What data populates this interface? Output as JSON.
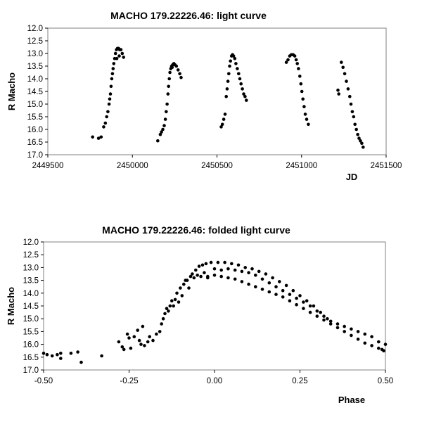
{
  "chart_data": [
    {
      "type": "scatter",
      "title": "MACHO 179.22226.46: light curve",
      "xlabel": "JD",
      "ylabel": "R Macho",
      "xlim": [
        2449500,
        2451500
      ],
      "ylim": [
        12.0,
        17.0
      ],
      "y_inverted": true,
      "grid": false,
      "x_ticks": [
        "2449500",
        "2450000",
        "2450500",
        "2451000",
        "2451500"
      ],
      "y_ticks": [
        "12.0",
        "12.5",
        "13.0",
        "13.5",
        "14.0",
        "14.5",
        "15.0",
        "15.5",
        "16.0",
        "16.5",
        "17.0"
      ],
      "marker_color": "#000000",
      "series": [
        {
          "points": [
            [
              2449765,
              16.3
            ],
            [
              2449800,
              16.35
            ],
            [
              2449815,
              16.3
            ],
            [
              2449830,
              15.9
            ],
            [
              2449840,
              15.75
            ],
            [
              2449848,
              15.5
            ],
            [
              2449855,
              15.3
            ],
            [
              2449862,
              15.0
            ],
            [
              2449866,
              14.8
            ],
            [
              2449870,
              14.6
            ],
            [
              2449874,
              14.3
            ],
            [
              2449878,
              14.0
            ],
            [
              2449882,
              13.8
            ],
            [
              2449886,
              13.6
            ],
            [
              2449890,
              13.4
            ],
            [
              2449895,
              13.2
            ],
            [
              2449900,
              13.0
            ],
            [
              2449906,
              12.85
            ],
            [
              2449912,
              12.8
            ],
            [
              2449918,
              12.8
            ],
            [
              2449925,
              12.85
            ],
            [
              2449932,
              12.85
            ],
            [
              2449940,
              13.0
            ],
            [
              2449948,
              13.15
            ],
            [
              2449922,
              13.1
            ],
            [
              2449908,
              13.2
            ],
            [
              2450150,
              16.45
            ],
            [
              2450165,
              16.2
            ],
            [
              2450172,
              16.1
            ],
            [
              2450180,
              16.0
            ],
            [
              2450188,
              15.85
            ],
            [
              2450195,
              15.6
            ],
            [
              2450200,
              15.3
            ],
            [
              2450205,
              15.0
            ],
            [
              2450210,
              14.6
            ],
            [
              2450214,
              14.3
            ],
            [
              2450218,
              14.0
            ],
            [
              2450222,
              13.75
            ],
            [
              2450227,
              13.6
            ],
            [
              2450232,
              13.5
            ],
            [
              2450238,
              13.45
            ],
            [
              2450245,
              13.4
            ],
            [
              2450252,
              13.45
            ],
            [
              2450260,
              13.5
            ],
            [
              2450270,
              13.65
            ],
            [
              2450280,
              13.8
            ],
            [
              2450288,
              13.95
            ],
            [
              2450235,
              13.55
            ],
            [
              2450525,
              15.9
            ],
            [
              2450532,
              15.8
            ],
            [
              2450540,
              15.6
            ],
            [
              2450548,
              15.4
            ],
            [
              2450555,
              14.7
            ],
            [
              2450560,
              14.4
            ],
            [
              2450565,
              14.1
            ],
            [
              2450570,
              13.8
            ],
            [
              2450575,
              13.5
            ],
            [
              2450580,
              13.3
            ],
            [
              2450586,
              13.1
            ],
            [
              2450592,
              13.05
            ],
            [
              2450598,
              13.1
            ],
            [
              2450605,
              13.2
            ],
            [
              2450612,
              13.4
            ],
            [
              2450620,
              13.6
            ],
            [
              2450628,
              13.8
            ],
            [
              2450635,
              14.0
            ],
            [
              2450642,
              14.2
            ],
            [
              2450650,
              14.4
            ],
            [
              2450658,
              14.6
            ],
            [
              2450666,
              14.7
            ],
            [
              2450674,
              14.85
            ],
            [
              2450910,
              13.35
            ],
            [
              2450920,
              13.25
            ],
            [
              2450930,
              13.1
            ],
            [
              2450940,
              13.05
            ],
            [
              2450950,
              13.05
            ],
            [
              2450960,
              13.1
            ],
            [
              2450968,
              13.25
            ],
            [
              2450975,
              13.4
            ],
            [
              2450982,
              13.6
            ],
            [
              2450990,
              13.9
            ],
            [
              2450996,
              14.2
            ],
            [
              2451002,
              14.5
            ],
            [
              2451008,
              14.8
            ],
            [
              2451015,
              15.1
            ],
            [
              2451022,
              15.4
            ],
            [
              2451030,
              15.6
            ],
            [
              2451040,
              15.8
            ],
            [
              2451215,
              14.45
            ],
            [
              2451220,
              14.6
            ],
            [
              2451235,
              13.35
            ],
            [
              2451245,
              13.55
            ],
            [
              2451255,
              13.8
            ],
            [
              2451265,
              14.1
            ],
            [
              2451275,
              14.4
            ],
            [
              2451285,
              14.7
            ],
            [
              2451292,
              15.0
            ],
            [
              2451300,
              15.3
            ],
            [
              2451308,
              15.5
            ],
            [
              2451316,
              15.8
            ],
            [
              2451324,
              16.0
            ],
            [
              2451332,
              16.2
            ],
            [
              2451340,
              16.35
            ],
            [
              2451348,
              16.45
            ],
            [
              2451356,
              16.55
            ],
            [
              2451364,
              16.7
            ]
          ]
        }
      ]
    },
    {
      "type": "scatter",
      "title": "MACHO 179.22226.46: folded light curve",
      "xlabel": "Phase",
      "ylabel": "R Macho",
      "xlim": [
        -0.5,
        0.5
      ],
      "ylim": [
        12.0,
        17.0
      ],
      "y_inverted": true,
      "grid": false,
      "x_ticks": [
        "-0.50",
        "-0.25",
        "0.00",
        "0.25",
        "0.50"
      ],
      "y_ticks": [
        "12.0",
        "12.5",
        "13.0",
        "13.5",
        "14.0",
        "14.5",
        "15.0",
        "15.5",
        "16.0",
        "16.5",
        "17.0"
      ],
      "marker_color": "#000000",
      "series": [
        {
          "points": [
            [
              -0.5,
              16.35
            ],
            [
              -0.49,
              16.4
            ],
            [
              -0.475,
              16.45
            ],
            [
              -0.46,
              16.4
            ],
            [
              -0.45,
              16.55
            ],
            [
              -0.45,
              16.35
            ],
            [
              -0.42,
              16.35
            ],
            [
              -0.4,
              16.3
            ],
            [
              -0.39,
              16.7
            ],
            [
              -0.33,
              16.45
            ],
            [
              -0.28,
              15.9
            ],
            [
              -0.27,
              16.1
            ],
            [
              -0.265,
              16.2
            ],
            [
              -0.255,
              15.6
            ],
            [
              -0.25,
              15.75
            ],
            [
              -0.245,
              16.15
            ],
            [
              -0.235,
              15.7
            ],
            [
              -0.225,
              15.45
            ],
            [
              -0.22,
              15.85
            ],
            [
              -0.215,
              16.0
            ],
            [
              -0.21,
              15.3
            ],
            [
              -0.205,
              16.05
            ],
            [
              -0.195,
              15.9
            ],
            [
              -0.19,
              15.7
            ],
            [
              -0.18,
              15.85
            ],
            [
              -0.17,
              15.6
            ],
            [
              -0.16,
              15.5
            ],
            [
              -0.155,
              15.2
            ],
            [
              -0.15,
              15.0
            ],
            [
              -0.145,
              14.8
            ],
            [
              -0.14,
              14.6
            ],
            [
              -0.135,
              14.7
            ],
            [
              -0.13,
              14.5
            ],
            [
              -0.125,
              14.3
            ],
            [
              -0.12,
              14.5
            ],
            [
              -0.115,
              14.25
            ],
            [
              -0.11,
              14.0
            ],
            [
              -0.105,
              14.35
            ],
            [
              -0.1,
              13.8
            ],
            [
              -0.095,
              14.1
            ],
            [
              -0.09,
              13.65
            ],
            [
              -0.085,
              13.5
            ],
            [
              -0.08,
              13.5
            ],
            [
              -0.075,
              13.8
            ],
            [
              -0.07,
              13.35
            ],
            [
              -0.065,
              13.25
            ],
            [
              -0.06,
              13.4
            ],
            [
              -0.055,
              13.1
            ],
            [
              -0.05,
              13.3
            ],
            [
              -0.045,
              12.95
            ],
            [
              -0.04,
              13.35
            ],
            [
              -0.035,
              12.9
            ],
            [
              -0.03,
              13.2
            ],
            [
              -0.025,
              12.85
            ],
            [
              -0.02,
              13.35
            ],
            [
              -0.01,
              12.8
            ],
            [
              0.0,
              13.05
            ],
            [
              0.01,
              12.8
            ],
            [
              0.02,
              13.1
            ],
            [
              0.03,
              12.8
            ],
            [
              0.04,
              13.05
            ],
            [
              0.05,
              12.85
            ],
            [
              0.06,
              13.1
            ],
            [
              0.07,
              12.9
            ],
            [
              0.08,
              13.15
            ],
            [
              0.09,
              13.0
            ],
            [
              0.1,
              13.2
            ],
            [
              0.11,
              13.05
            ],
            [
              0.12,
              13.3
            ],
            [
              0.13,
              13.15
            ],
            [
              0.14,
              13.45
            ],
            [
              0.15,
              13.25
            ],
            [
              0.16,
              13.6
            ],
            [
              0.17,
              13.4
            ],
            [
              0.18,
              13.75
            ],
            [
              0.19,
              13.55
            ],
            [
              0.2,
              13.9
            ],
            [
              0.21,
              13.7
            ],
            [
              0.22,
              14.05
            ],
            [
              0.23,
              13.9
            ],
            [
              0.24,
              14.2
            ],
            [
              0.25,
              14.1
            ],
            [
              0.26,
              14.35
            ],
            [
              0.27,
              14.3
            ],
            [
              0.28,
              14.5
            ],
            [
              0.29,
              14.5
            ],
            [
              0.3,
              14.7
            ],
            [
              0.31,
              14.75
            ],
            [
              0.32,
              14.9
            ],
            [
              0.33,
              15.0
            ],
            [
              0.34,
              15.1
            ],
            [
              0.36,
              15.2
            ],
            [
              0.38,
              15.3
            ],
            [
              0.4,
              15.4
            ],
            [
              0.42,
              15.5
            ],
            [
              0.44,
              15.6
            ],
            [
              0.46,
              15.7
            ],
            [
              0.48,
              15.9
            ],
            [
              0.5,
              16.0
            ],
            [
              -0.02,
              13.4
            ],
            [
              0.0,
              13.3
            ],
            [
              0.02,
              13.35
            ],
            [
              0.04,
              13.4
            ],
            [
              0.06,
              13.45
            ],
            [
              0.08,
              13.55
            ],
            [
              0.1,
              13.65
            ],
            [
              0.12,
              13.75
            ],
            [
              0.14,
              13.85
            ],
            [
              0.16,
              13.95
            ],
            [
              0.18,
              14.05
            ],
            [
              0.2,
              14.15
            ],
            [
              0.22,
              14.3
            ],
            [
              0.24,
              14.45
            ],
            [
              0.26,
              14.6
            ],
            [
              0.28,
              14.75
            ],
            [
              0.3,
              14.9
            ],
            [
              0.32,
              15.05
            ],
            [
              0.34,
              15.2
            ],
            [
              0.36,
              15.35
            ],
            [
              0.38,
              15.5
            ],
            [
              0.4,
              15.65
            ],
            [
              0.42,
              15.8
            ],
            [
              0.44,
              15.95
            ],
            [
              0.46,
              16.05
            ],
            [
              0.48,
              16.15
            ],
            [
              0.49,
              16.2
            ],
            [
              0.495,
              16.25
            ]
          ]
        }
      ]
    }
  ]
}
